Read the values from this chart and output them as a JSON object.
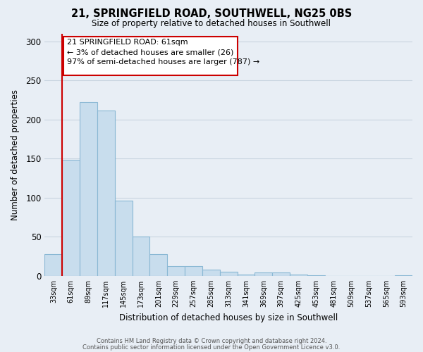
{
  "title": "21, SPRINGFIELD ROAD, SOUTHWELL, NG25 0BS",
  "subtitle": "Size of property relative to detached houses in Southwell",
  "xlabel": "Distribution of detached houses by size in Southwell",
  "ylabel": "Number of detached properties",
  "bar_labels": [
    "33sqm",
    "61sqm",
    "89sqm",
    "117sqm",
    "145sqm",
    "173sqm",
    "201sqm",
    "229sqm",
    "257sqm",
    "285sqm",
    "313sqm",
    "341sqm",
    "369sqm",
    "397sqm",
    "425sqm",
    "453sqm",
    "481sqm",
    "509sqm",
    "537sqm",
    "565sqm",
    "593sqm"
  ],
  "bar_values": [
    28,
    148,
    222,
    211,
    96,
    50,
    28,
    12,
    12,
    8,
    5,
    2,
    4,
    4,
    2,
    1,
    0,
    0,
    0,
    0,
    1
  ],
  "bar_color": "#c8dded",
  "bar_edge_color": "#8ab8d4",
  "highlight_line_color": "#cc0000",
  "highlight_bar_index": 1,
  "ylim": [
    0,
    310
  ],
  "yticks": [
    0,
    50,
    100,
    150,
    200,
    250,
    300
  ],
  "annotation_line1": "21 SPRINGFIELD ROAD: 61sqm",
  "annotation_line2": "← 3% of detached houses are smaller (26)",
  "annotation_line3": "97% of semi-detached houses are larger (787) →",
  "footer_line1": "Contains HM Land Registry data © Crown copyright and database right 2024.",
  "footer_line2": "Contains public sector information licensed under the Open Government Licence v3.0.",
  "grid_color": "#c8d4e0",
  "background_color": "#e8eef5"
}
